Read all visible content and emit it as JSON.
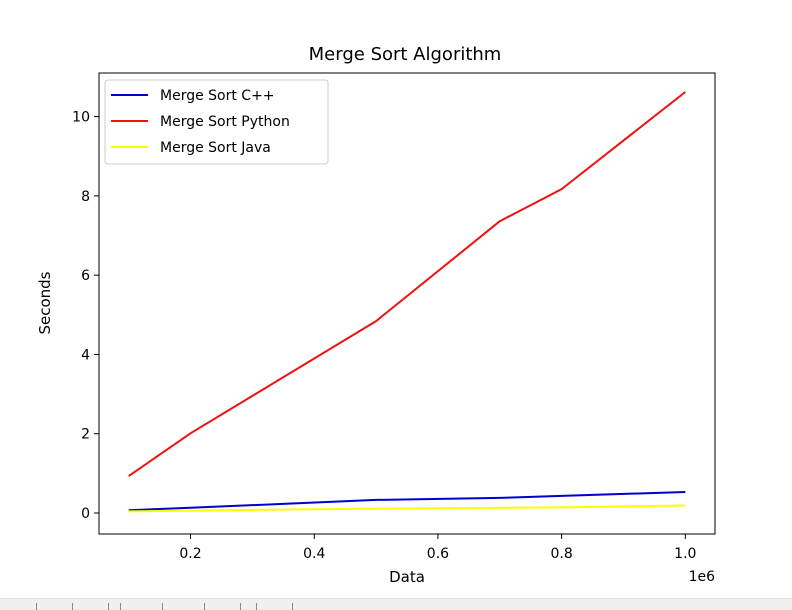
{
  "chart_data": {
    "type": "line",
    "title": "Merge Sort Algorithm",
    "xlabel": "Data",
    "ylabel": "Seconds",
    "x_offset_label": "1e6",
    "xlim": [
      0.052,
      1.048
    ],
    "ylim": [
      -0.53,
      11.1
    ],
    "x_ticks": [
      0.2,
      0.4,
      0.6,
      0.8,
      1.0
    ],
    "x_tick_labels": [
      "0.2",
      "0.4",
      "0.6",
      "0.8",
      "1.0"
    ],
    "y_ticks": [
      0,
      2,
      4,
      6,
      8,
      10
    ],
    "y_tick_labels": [
      "0",
      "2",
      "4",
      "6",
      "8",
      "10"
    ],
    "grid": false,
    "legend_position": "upper-left",
    "x": [
      0.1,
      0.2,
      0.5,
      0.7,
      0.8,
      1.0
    ],
    "series": [
      {
        "name": "Merge Sort C++",
        "color": "#0000cc",
        "values": [
          0.07,
          0.13,
          0.33,
          0.38,
          0.43,
          0.53
        ]
      },
      {
        "name": "Merge Sort Python",
        "color": "#ee1111",
        "values": [
          0.93,
          2.01,
          4.84,
          7.36,
          8.17,
          10.62
        ]
      },
      {
        "name": "Merge Sort Java",
        "color": "#ffff00",
        "values": [
          0.04,
          0.06,
          0.11,
          0.13,
          0.14,
          0.19
        ]
      }
    ]
  }
}
